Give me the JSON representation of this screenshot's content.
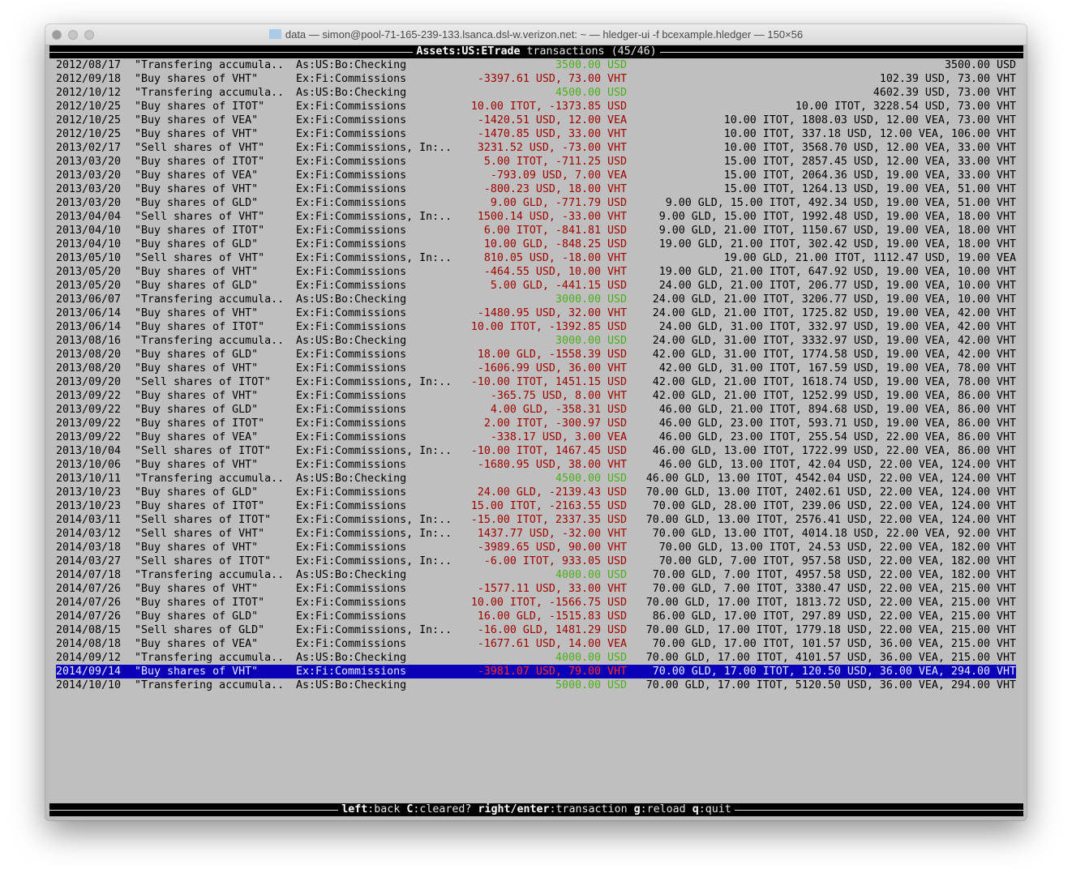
{
  "window": {
    "title": "data — simon@pool-71-165-239-133.lsanca.dsl-w.verizon.net: ~ — hledger-ui -f bcexample.hledger — 150×56"
  },
  "header": {
    "account": "Assets:US:ETrade",
    "label": "transactions",
    "position": "(45/46)"
  },
  "colors": {
    "background": "#bfbfbf",
    "positive_amount": "#4caf1a",
    "negative_amount": "#a00000",
    "selected_row": "#0a00b8",
    "selected_amount": "#ff3020"
  },
  "selected_index": 44,
  "rows": [
    {
      "date": "2012/08/17",
      "desc": "\"Transfering accumula..",
      "account": "As:US:Bo:Checking",
      "change": "3500.00 USD",
      "positive": true,
      "balance": "3500.00 USD"
    },
    {
      "date": "2012/09/18",
      "desc": "\"Buy shares of VHT\"",
      "account": "Ex:Fi:Commissions",
      "change": "-3397.61 USD, 73.00 VHT",
      "positive": false,
      "balance": "102.39 USD, 73.00 VHT"
    },
    {
      "date": "2012/10/12",
      "desc": "\"Transfering accumula..",
      "account": "As:US:Bo:Checking",
      "change": "4500.00 USD",
      "positive": true,
      "balance": "4602.39 USD, 73.00 VHT"
    },
    {
      "date": "2012/10/25",
      "desc": "\"Buy shares of ITOT\"",
      "account": "Ex:Fi:Commissions",
      "change": "10.00 ITOT, -1373.85 USD",
      "positive": false,
      "balance": "10.00 ITOT, 3228.54 USD, 73.00 VHT"
    },
    {
      "date": "2012/10/25",
      "desc": "\"Buy shares of VEA\"",
      "account": "Ex:Fi:Commissions",
      "change": "-1420.51 USD, 12.00 VEA",
      "positive": false,
      "balance": "10.00 ITOT, 1808.03 USD, 12.00 VEA, 73.00 VHT"
    },
    {
      "date": "2012/10/25",
      "desc": "\"Buy shares of VHT\"",
      "account": "Ex:Fi:Commissions",
      "change": "-1470.85 USD, 33.00 VHT",
      "positive": false,
      "balance": "10.00 ITOT, 337.18 USD, 12.00 VEA, 106.00 VHT"
    },
    {
      "date": "2013/02/17",
      "desc": "\"Sell shares of VHT\"",
      "account": "Ex:Fi:Commissions, In:..",
      "change": "3231.52 USD, -73.00 VHT",
      "positive": false,
      "balance": "10.00 ITOT, 3568.70 USD, 12.00 VEA, 33.00 VHT"
    },
    {
      "date": "2013/03/20",
      "desc": "\"Buy shares of ITOT\"",
      "account": "Ex:Fi:Commissions",
      "change": "5.00 ITOT, -711.25 USD",
      "positive": false,
      "balance": "15.00 ITOT, 2857.45 USD, 12.00 VEA, 33.00 VHT"
    },
    {
      "date": "2013/03/20",
      "desc": "\"Buy shares of VEA\"",
      "account": "Ex:Fi:Commissions",
      "change": "-793.09 USD, 7.00 VEA",
      "positive": false,
      "balance": "15.00 ITOT, 2064.36 USD, 19.00 VEA, 33.00 VHT"
    },
    {
      "date": "2013/03/20",
      "desc": "\"Buy shares of VHT\"",
      "account": "Ex:Fi:Commissions",
      "change": "-800.23 USD, 18.00 VHT",
      "positive": false,
      "balance": "15.00 ITOT, 1264.13 USD, 19.00 VEA, 51.00 VHT"
    },
    {
      "date": "2013/03/20",
      "desc": "\"Buy shares of GLD\"",
      "account": "Ex:Fi:Commissions",
      "change": "9.00 GLD, -771.79 USD",
      "positive": false,
      "balance": "9.00 GLD, 15.00 ITOT, 492.34 USD, 19.00 VEA, 51.00 VHT"
    },
    {
      "date": "2013/04/04",
      "desc": "\"Sell shares of VHT\"",
      "account": "Ex:Fi:Commissions, In:..",
      "change": "1500.14 USD, -33.00 VHT",
      "positive": false,
      "balance": "9.00 GLD, 15.00 ITOT, 1992.48 USD, 19.00 VEA, 18.00 VHT"
    },
    {
      "date": "2013/04/10",
      "desc": "\"Buy shares of ITOT\"",
      "account": "Ex:Fi:Commissions",
      "change": "6.00 ITOT, -841.81 USD",
      "positive": false,
      "balance": "9.00 GLD, 21.00 ITOT, 1150.67 USD, 19.00 VEA, 18.00 VHT"
    },
    {
      "date": "2013/04/10",
      "desc": "\"Buy shares of GLD\"",
      "account": "Ex:Fi:Commissions",
      "change": "10.00 GLD, -848.25 USD",
      "positive": false,
      "balance": "19.00 GLD, 21.00 ITOT, 302.42 USD, 19.00 VEA, 18.00 VHT"
    },
    {
      "date": "2013/05/10",
      "desc": "\"Sell shares of VHT\"",
      "account": "Ex:Fi:Commissions, In:..",
      "change": "810.05 USD, -18.00 VHT",
      "positive": false,
      "balance": "19.00 GLD, 21.00 ITOT, 1112.47 USD, 19.00 VEA"
    },
    {
      "date": "2013/05/20",
      "desc": "\"Buy shares of VHT\"",
      "account": "Ex:Fi:Commissions",
      "change": "-464.55 USD, 10.00 VHT",
      "positive": false,
      "balance": "19.00 GLD, 21.00 ITOT, 647.92 USD, 19.00 VEA, 10.00 VHT"
    },
    {
      "date": "2013/05/20",
      "desc": "\"Buy shares of GLD\"",
      "account": "Ex:Fi:Commissions",
      "change": "5.00 GLD, -441.15 USD",
      "positive": false,
      "balance": "24.00 GLD, 21.00 ITOT, 206.77 USD, 19.00 VEA, 10.00 VHT"
    },
    {
      "date": "2013/06/07",
      "desc": "\"Transfering accumula..",
      "account": "As:US:Bo:Checking",
      "change": "3000.00 USD",
      "positive": true,
      "balance": "24.00 GLD, 21.00 ITOT, 3206.77 USD, 19.00 VEA, 10.00 VHT"
    },
    {
      "date": "2013/06/14",
      "desc": "\"Buy shares of VHT\"",
      "account": "Ex:Fi:Commissions",
      "change": "-1480.95 USD, 32.00 VHT",
      "positive": false,
      "balance": "24.00 GLD, 21.00 ITOT, 1725.82 USD, 19.00 VEA, 42.00 VHT"
    },
    {
      "date": "2013/06/14",
      "desc": "\"Buy shares of ITOT\"",
      "account": "Ex:Fi:Commissions",
      "change": "10.00 ITOT, -1392.85 USD",
      "positive": false,
      "balance": "24.00 GLD, 31.00 ITOT, 332.97 USD, 19.00 VEA, 42.00 VHT"
    },
    {
      "date": "2013/08/16",
      "desc": "\"Transfering accumula..",
      "account": "As:US:Bo:Checking",
      "change": "3000.00 USD",
      "positive": true,
      "balance": "24.00 GLD, 31.00 ITOT, 3332.97 USD, 19.00 VEA, 42.00 VHT"
    },
    {
      "date": "2013/08/20",
      "desc": "\"Buy shares of GLD\"",
      "account": "Ex:Fi:Commissions",
      "change": "18.00 GLD, -1558.39 USD",
      "positive": false,
      "balance": "42.00 GLD, 31.00 ITOT, 1774.58 USD, 19.00 VEA, 42.00 VHT"
    },
    {
      "date": "2013/08/20",
      "desc": "\"Buy shares of VHT\"",
      "account": "Ex:Fi:Commissions",
      "change": "-1606.99 USD, 36.00 VHT",
      "positive": false,
      "balance": "42.00 GLD, 31.00 ITOT, 167.59 USD, 19.00 VEA, 78.00 VHT"
    },
    {
      "date": "2013/09/20",
      "desc": "\"Sell shares of ITOT\"",
      "account": "Ex:Fi:Commissions, In:..",
      "change": "-10.00 ITOT, 1451.15 USD",
      "positive": false,
      "balance": "42.00 GLD, 21.00 ITOT, 1618.74 USD, 19.00 VEA, 78.00 VHT"
    },
    {
      "date": "2013/09/22",
      "desc": "\"Buy shares of VHT\"",
      "account": "Ex:Fi:Commissions",
      "change": "-365.75 USD, 8.00 VHT",
      "positive": false,
      "balance": "42.00 GLD, 21.00 ITOT, 1252.99 USD, 19.00 VEA, 86.00 VHT"
    },
    {
      "date": "2013/09/22",
      "desc": "\"Buy shares of GLD\"",
      "account": "Ex:Fi:Commissions",
      "change": "4.00 GLD, -358.31 USD",
      "positive": false,
      "balance": "46.00 GLD, 21.00 ITOT, 894.68 USD, 19.00 VEA, 86.00 VHT"
    },
    {
      "date": "2013/09/22",
      "desc": "\"Buy shares of ITOT\"",
      "account": "Ex:Fi:Commissions",
      "change": "2.00 ITOT, -300.97 USD",
      "positive": false,
      "balance": "46.00 GLD, 23.00 ITOT, 593.71 USD, 19.00 VEA, 86.00 VHT"
    },
    {
      "date": "2013/09/22",
      "desc": "\"Buy shares of VEA\"",
      "account": "Ex:Fi:Commissions",
      "change": "-338.17 USD, 3.00 VEA",
      "positive": false,
      "balance": "46.00 GLD, 23.00 ITOT, 255.54 USD, 22.00 VEA, 86.00 VHT"
    },
    {
      "date": "2013/10/04",
      "desc": "\"Sell shares of ITOT\"",
      "account": "Ex:Fi:Commissions, In:..",
      "change": "-10.00 ITOT, 1467.45 USD",
      "positive": false,
      "balance": "46.00 GLD, 13.00 ITOT, 1722.99 USD, 22.00 VEA, 86.00 VHT"
    },
    {
      "date": "2013/10/06",
      "desc": "\"Buy shares of VHT\"",
      "account": "Ex:Fi:Commissions",
      "change": "-1680.95 USD, 38.00 VHT",
      "positive": false,
      "balance": "46.00 GLD, 13.00 ITOT, 42.04 USD, 22.00 VEA, 124.00 VHT"
    },
    {
      "date": "2013/10/11",
      "desc": "\"Transfering accumula..",
      "account": "As:US:Bo:Checking",
      "change": "4500.00 USD",
      "positive": true,
      "balance": "46.00 GLD, 13.00 ITOT, 4542.04 USD, 22.00 VEA, 124.00 VHT"
    },
    {
      "date": "2013/10/23",
      "desc": "\"Buy shares of GLD\"",
      "account": "Ex:Fi:Commissions",
      "change": "24.00 GLD, -2139.43 USD",
      "positive": false,
      "balance": "70.00 GLD, 13.00 ITOT, 2402.61 USD, 22.00 VEA, 124.00 VHT"
    },
    {
      "date": "2013/10/23",
      "desc": "\"Buy shares of ITOT\"",
      "account": "Ex:Fi:Commissions",
      "change": "15.00 ITOT, -2163.55 USD",
      "positive": false,
      "balance": "70.00 GLD, 28.00 ITOT, 239.06 USD, 22.00 VEA, 124.00 VHT"
    },
    {
      "date": "2014/03/11",
      "desc": "\"Sell shares of ITOT\"",
      "account": "Ex:Fi:Commissions, In:..",
      "change": "-15.00 ITOT, 2337.35 USD",
      "positive": false,
      "balance": "70.00 GLD, 13.00 ITOT, 2576.41 USD, 22.00 VEA, 124.00 VHT"
    },
    {
      "date": "2014/03/12",
      "desc": "\"Sell shares of VHT\"",
      "account": "Ex:Fi:Commissions, In:..",
      "change": "1437.77 USD, -32.00 VHT",
      "positive": false,
      "balance": "70.00 GLD, 13.00 ITOT, 4014.18 USD, 22.00 VEA, 92.00 VHT"
    },
    {
      "date": "2014/03/18",
      "desc": "\"Buy shares of VHT\"",
      "account": "Ex:Fi:Commissions",
      "change": "-3989.65 USD, 90.00 VHT",
      "positive": false,
      "balance": "70.00 GLD, 13.00 ITOT, 24.53 USD, 22.00 VEA, 182.00 VHT"
    },
    {
      "date": "2014/03/27",
      "desc": "\"Sell shares of ITOT\"",
      "account": "Ex:Fi:Commissions, In:..",
      "change": "-6.00 ITOT, 933.05 USD",
      "positive": false,
      "balance": "70.00 GLD, 7.00 ITOT, 957.58 USD, 22.00 VEA, 182.00 VHT"
    },
    {
      "date": "2014/07/18",
      "desc": "\"Transfering accumula..",
      "account": "As:US:Bo:Checking",
      "change": "4000.00 USD",
      "positive": true,
      "balance": "70.00 GLD, 7.00 ITOT, 4957.58 USD, 22.00 VEA, 182.00 VHT"
    },
    {
      "date": "2014/07/26",
      "desc": "\"Buy shares of VHT\"",
      "account": "Ex:Fi:Commissions",
      "change": "-1577.11 USD, 33.00 VHT",
      "positive": false,
      "balance": "70.00 GLD, 7.00 ITOT, 3380.47 USD, 22.00 VEA, 215.00 VHT"
    },
    {
      "date": "2014/07/26",
      "desc": "\"Buy shares of ITOT\"",
      "account": "Ex:Fi:Commissions",
      "change": "10.00 ITOT, -1566.75 USD",
      "positive": false,
      "balance": "70.00 GLD, 17.00 ITOT, 1813.72 USD, 22.00 VEA, 215.00 VHT"
    },
    {
      "date": "2014/07/26",
      "desc": "\"Buy shares of GLD\"",
      "account": "Ex:Fi:Commissions",
      "change": "16.00 GLD, -1515.83 USD",
      "positive": false,
      "balance": "86.00 GLD, 17.00 ITOT, 297.89 USD, 22.00 VEA, 215.00 VHT"
    },
    {
      "date": "2014/08/15",
      "desc": "\"Sell shares of GLD\"",
      "account": "Ex:Fi:Commissions, In:..",
      "change": "-16.00 GLD, 1481.29 USD",
      "positive": false,
      "balance": "70.00 GLD, 17.00 ITOT, 1779.18 USD, 22.00 VEA, 215.00 VHT"
    },
    {
      "date": "2014/08/18",
      "desc": "\"Buy shares of VEA\"",
      "account": "Ex:Fi:Commissions",
      "change": "-1677.61 USD, 14.00 VEA",
      "positive": false,
      "balance": "70.00 GLD, 17.00 ITOT, 101.57 USD, 36.00 VEA, 215.00 VHT"
    },
    {
      "date": "2014/09/12",
      "desc": "\"Transfering accumula..",
      "account": "As:US:Bo:Checking",
      "change": "4000.00 USD",
      "positive": true,
      "balance": "70.00 GLD, 17.00 ITOT, 4101.57 USD, 36.00 VEA, 215.00 VHT"
    },
    {
      "date": "2014/09/14",
      "desc": "\"Buy shares of VHT\"",
      "account": "Ex:Fi:Commissions",
      "change": "-3981.07 USD, 79.00 VHT",
      "positive": false,
      "balance": "70.00 GLD, 17.00 ITOT, 120.50 USD, 36.00 VEA, 294.00 VHT"
    },
    {
      "date": "2014/10/10",
      "desc": "\"Transfering accumula..",
      "account": "As:US:Bo:Checking",
      "change": "5000.00 USD",
      "positive": true,
      "balance": "70.00 GLD, 17.00 ITOT, 5120.50 USD, 36.00 VEA, 294.00 VHT"
    }
  ],
  "footer": {
    "keys": [
      {
        "key": "left",
        "action": "back"
      },
      {
        "key": "C",
        "action": "cleared?"
      },
      {
        "key": "right/enter",
        "action": "transaction"
      },
      {
        "key": "g",
        "action": "reload"
      },
      {
        "key": "q",
        "action": "quit"
      }
    ]
  }
}
